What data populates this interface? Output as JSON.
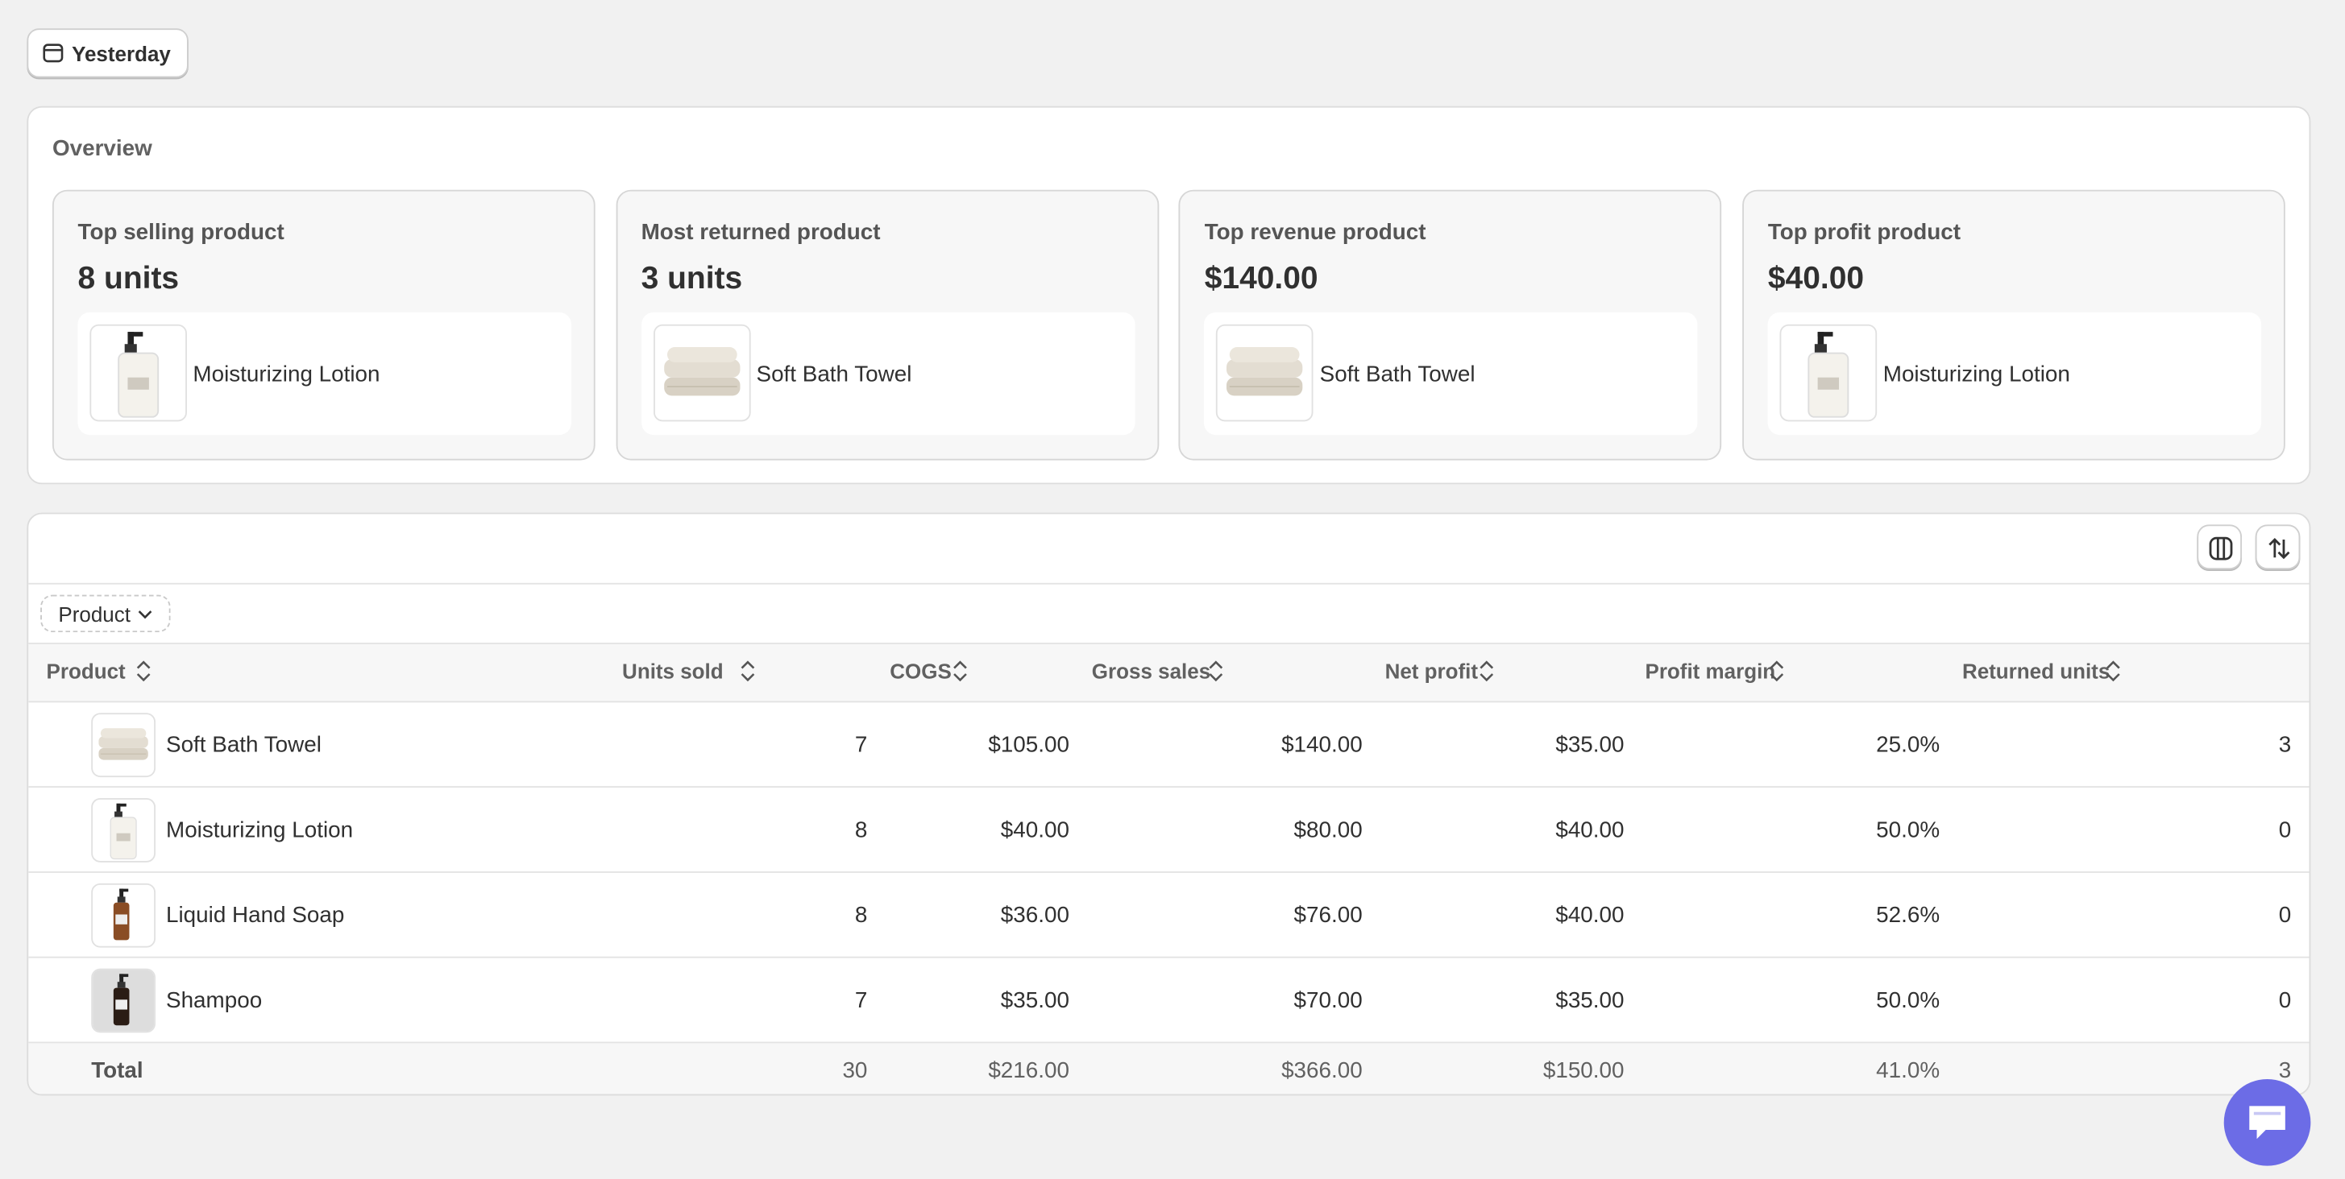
{
  "date_filter": "Yesterday",
  "overview": {
    "title": "Overview",
    "cards": [
      {
        "title": "Top selling product",
        "value": "8 units",
        "product": "Moisturizing Lotion"
      },
      {
        "title": "Most returned product",
        "value": "3 units",
        "product": "Soft Bath Towel"
      },
      {
        "title": "Top revenue product",
        "value": "$140.00",
        "product": "Soft Bath Towel"
      },
      {
        "title": "Top profit product",
        "value": "$40.00",
        "product": "Moisturizing Lotion"
      }
    ]
  },
  "table": {
    "filter": "Product",
    "columns": [
      "Product",
      "Units sold",
      "COGS",
      "Gross sales",
      "Net profit",
      "Profit margin",
      "Returned units"
    ],
    "rows": [
      [
        "Soft Bath Towel",
        "7",
        "$105.00",
        "$140.00",
        "$35.00",
        "25.0%",
        "3"
      ],
      [
        "Moisturizing Lotion",
        "8",
        "$40.00",
        "$80.00",
        "$40.00",
        "50.0%",
        "0"
      ],
      [
        "Liquid Hand Soap",
        "8",
        "$36.00",
        "$76.00",
        "$40.00",
        "52.6%",
        "0"
      ],
      [
        "Shampoo",
        "7",
        "$35.00",
        "$70.00",
        "$35.00",
        "50.0%",
        "0"
      ]
    ],
    "total": [
      "Total",
      "30",
      "$216.00",
      "$366.00",
      "$150.00",
      "41.0%",
      "3"
    ]
  }
}
